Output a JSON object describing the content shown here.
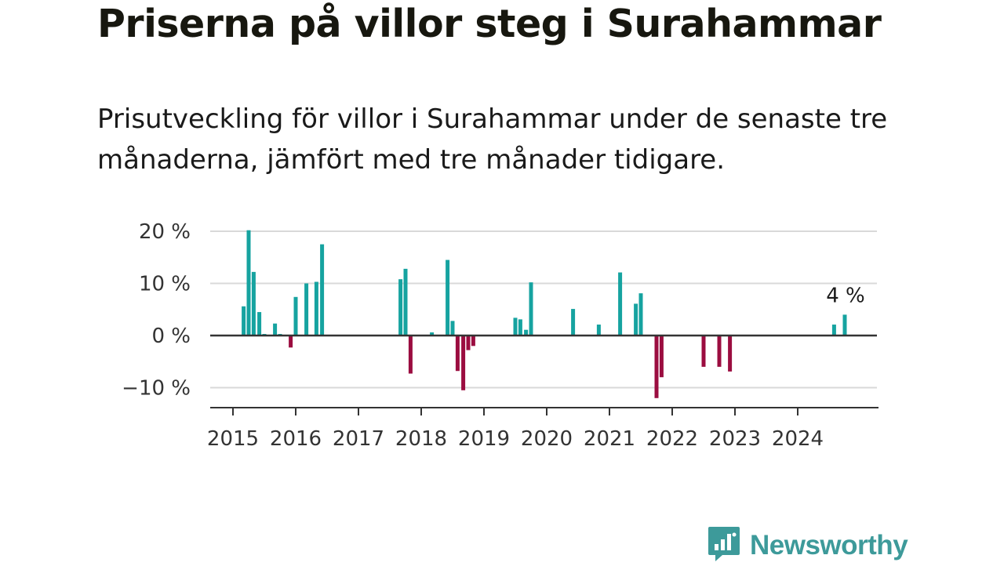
{
  "title": "Priserna på villor steg i Surahammar",
  "subtitle": "Prisutveckling för villor i Surahammar under de senaste tre månaderna, jämfört med tre månader tidigare.",
  "brand": {
    "name": "Newsworthy",
    "color": "#3d9a9a",
    "icon": "newsworthy-logo-icon"
  },
  "colors": {
    "positive": "#16a3a0",
    "negative": "#9b0d40",
    "grid": "#d9d9d9",
    "axis": "#333333"
  },
  "chart_data": {
    "type": "bar",
    "title": "Priserna på villor steg i Surahammar",
    "xlabel": "",
    "ylabel": "",
    "ylim": [
      -13.5,
      21
    ],
    "yticks": [
      {
        "value": 20,
        "label": "20 %"
      },
      {
        "value": 10,
        "label": "10 %"
      },
      {
        "value": 0,
        "label": "0 %"
      },
      {
        "value": -10,
        "label": "−10 %"
      }
    ],
    "x_range": [
      2015,
      2025.3
    ],
    "xticks": [
      "2015",
      "2016",
      "2017",
      "2018",
      "2019",
      "2020",
      "2021",
      "2022",
      "2023",
      "2024"
    ],
    "x_start_year": 2015,
    "annotation": {
      "label": "4 %",
      "x": 2024.75,
      "value": 4.0
    },
    "bars": [
      {
        "x": 2015.17,
        "value": 5.6
      },
      {
        "x": 2015.25,
        "value": 20.2
      },
      {
        "x": 2015.33,
        "value": 12.2
      },
      {
        "x": 2015.42,
        "value": 4.5
      },
      {
        "x": 2015.5,
        "value": 0.3
      },
      {
        "x": 2015.67,
        "value": 2.3
      },
      {
        "x": 2015.75,
        "value": 0.3
      },
      {
        "x": 2015.92,
        "value": -2.3
      },
      {
        "x": 2016.0,
        "value": 7.4
      },
      {
        "x": 2016.17,
        "value": 10.0
      },
      {
        "x": 2016.33,
        "value": 10.3
      },
      {
        "x": 2016.42,
        "value": 17.5
      },
      {
        "x": 2017.67,
        "value": 10.8
      },
      {
        "x": 2017.75,
        "value": 12.8
      },
      {
        "x": 2017.83,
        "value": -7.3
      },
      {
        "x": 2018.17,
        "value": 0.6
      },
      {
        "x": 2018.42,
        "value": 14.5
      },
      {
        "x": 2018.5,
        "value": 2.8
      },
      {
        "x": 2018.58,
        "value": -6.8
      },
      {
        "x": 2018.67,
        "value": -10.5
      },
      {
        "x": 2018.75,
        "value": -2.8
      },
      {
        "x": 2018.83,
        "value": -2.0
      },
      {
        "x": 2019.5,
        "value": 3.4
      },
      {
        "x": 2019.58,
        "value": 3.1
      },
      {
        "x": 2019.67,
        "value": 1.1
      },
      {
        "x": 2019.75,
        "value": 10.2
      },
      {
        "x": 2020.42,
        "value": 5.1
      },
      {
        "x": 2020.83,
        "value": 2.1
      },
      {
        "x": 2021.17,
        "value": 12.1
      },
      {
        "x": 2021.42,
        "value": 6.1
      },
      {
        "x": 2021.5,
        "value": 8.1
      },
      {
        "x": 2021.75,
        "value": -12.0
      },
      {
        "x": 2021.83,
        "value": -8.0
      },
      {
        "x": 2022.5,
        "value": -6.0
      },
      {
        "x": 2022.75,
        "value": -6.0
      },
      {
        "x": 2022.92,
        "value": -6.9
      },
      {
        "x": 2024.58,
        "value": 2.1
      },
      {
        "x": 2024.75,
        "value": 4.0
      }
    ]
  }
}
